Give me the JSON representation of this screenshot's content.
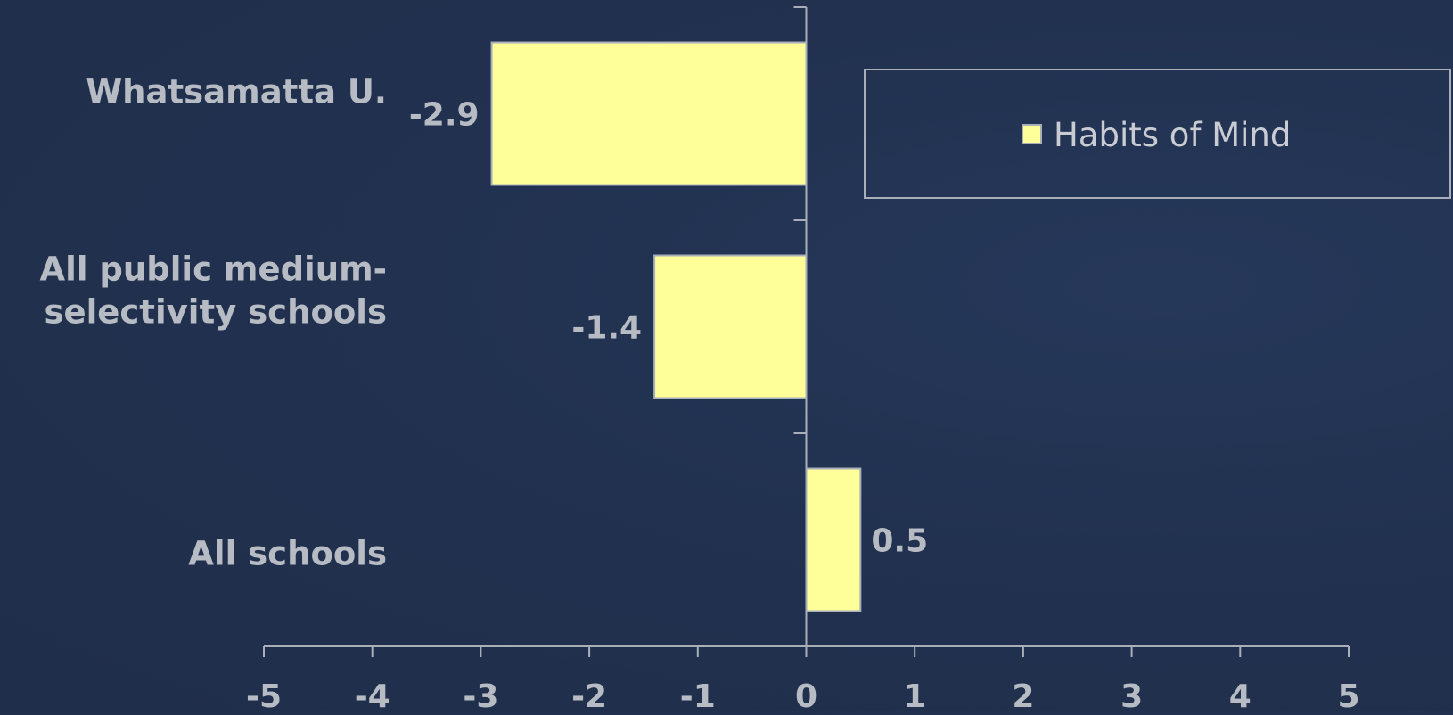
{
  "chart_data": {
    "type": "bar",
    "orientation": "horizontal",
    "categories": [
      "Whatsamatta U.",
      "All public medium-\nselectivity schools",
      "All schools"
    ],
    "series": [
      {
        "name": "Habits of Mind",
        "values": [
          -2.9,
          -1.4,
          0.5
        ]
      }
    ],
    "data_labels": [
      "-2.9",
      "-1.4",
      "0.5"
    ],
    "xlim": [
      -5,
      5
    ],
    "x_ticks": [
      "-5",
      "-4",
      "-3",
      "-2",
      "-1",
      "0",
      "1",
      "2",
      "3",
      "4",
      "5"
    ],
    "grid": false,
    "legend_position": "top-right",
    "colors": {
      "bar": "#ffff99",
      "bar_border": "#a9afb9",
      "text": "#b7bcc4",
      "axis": "#a9afb9",
      "background": "#21314f"
    }
  }
}
